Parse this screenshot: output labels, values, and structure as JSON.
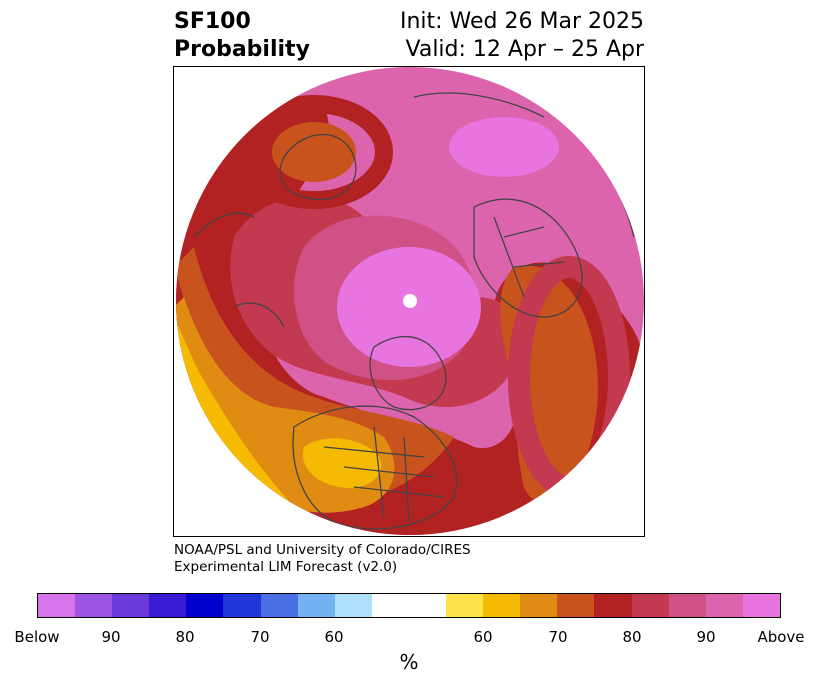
{
  "title": {
    "left_line1": "SF100",
    "left_line2": "Probability",
    "right_line1": "Init: Wed 26 Mar 2025",
    "right_line2": "Valid: 12 Apr – 25 Apr"
  },
  "credit": {
    "line1": "NOAA/PSL and University of Colorado/CIRES",
    "line2": "Experimental LIM Forecast (v2.0)"
  },
  "colorbar": {
    "colors": [
      "#d774ea",
      "#9c55e3",
      "#6a39da",
      "#3a1ad3",
      "#0000cc",
      "#2136d9",
      "#4b70e4",
      "#74b2f2",
      "#aee0fb",
      "#ffffff",
      "#ffffff",
      "#ffe34a",
      "#f5ba02",
      "#e08c12",
      "#c8531c",
      "#b22222",
      "#c3394f",
      "#cf5186",
      "#dc64ad",
      "#e874e0"
    ],
    "tick_labels": [
      "Below",
      "90",
      "80",
      "70",
      "60",
      "60",
      "70",
      "80",
      "90",
      "Above"
    ],
    "unit": "%"
  },
  "map_colors": {
    "outer_above_pink": "#dc64ad",
    "magenta_90": "#cf5186",
    "red_80": "#b22222",
    "crimson": "#c3394f",
    "orange_70": "#c8531c",
    "orange_65": "#e08c12",
    "yellow_60": "#f5ba02",
    "yellow_55": "#ffe34a",
    "violet_core": "#e874e0",
    "border_gray": "#444444"
  }
}
